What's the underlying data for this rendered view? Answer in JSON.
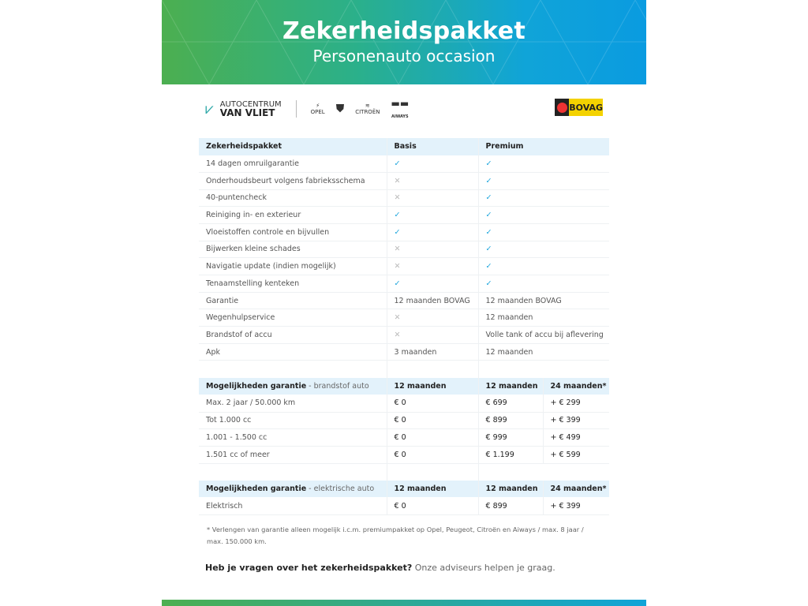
{
  "header": {
    "title": "Zekerheidspakket",
    "subtitle": "Personenauto occasion"
  },
  "logos": {
    "dealer_line1": "AUTOCENTRUM",
    "dealer_line2": "VAN VLIET",
    "brands": [
      "OPEL",
      "PEUGEOT",
      "CITROËN",
      "AIWAYS"
    ],
    "bovag": "BOVAG"
  },
  "colors": {
    "check": "#19a4dc",
    "header_bg": "#e3f2fb",
    "gradient_start": "#4caf50",
    "gradient_end": "#0a9be0"
  },
  "package_table": {
    "headers": [
      "Zekerheidspakket",
      "Basis",
      "Premium"
    ],
    "rows": [
      [
        "14 dagen omruilgarantie",
        "check",
        "check"
      ],
      [
        "Onderhoudsbeurt volgens fabrieksschema",
        "cross",
        "check"
      ],
      [
        "40-puntencheck",
        "cross",
        "check"
      ],
      [
        "Reiniging in- en exterieur",
        "check",
        "check"
      ],
      [
        "Vloeistoffen controle en bijvullen",
        "check",
        "check"
      ],
      [
        "Bijwerken kleine schades",
        "cross",
        "check"
      ],
      [
        "Navigatie update (indien mogelijk)",
        "cross",
        "check"
      ],
      [
        "Tenaamstelling kenteken",
        "check",
        "check"
      ],
      [
        "Garantie",
        "12 maanden BOVAG",
        "12 maanden BOVAG"
      ],
      [
        "Wegenhulpservice",
        "cross",
        "12 maanden"
      ],
      [
        "Brandstof of accu",
        "cross",
        "Volle tank of accu bij aflevering"
      ],
      [
        "Apk",
        "3 maanden",
        "12 maanden"
      ]
    ]
  },
  "fuel_table": {
    "title": "Mogelijkheden garantie",
    "subtitle": " - brandstof auto",
    "headers": [
      "12 maanden",
      "12 maanden",
      "24 maanden*"
    ],
    "rows": [
      [
        "Max. 2 jaar / 50.000 km",
        "€ 0",
        "€ 699",
        "+ € 299"
      ],
      [
        "Tot 1.000 cc",
        "€ 0",
        "€ 899",
        "+ € 399"
      ],
      [
        "1.001 - 1.500 cc",
        "€ 0",
        "€ 999",
        "+ € 499"
      ],
      [
        "1.501 cc of meer",
        "€ 0",
        "€ 1.199",
        "+ € 599"
      ]
    ]
  },
  "electric_table": {
    "title": "Mogelijkheden garantie",
    "subtitle": " - elektrische auto",
    "headers": [
      "12 maanden",
      "12 maanden",
      "24 maanden*"
    ],
    "rows": [
      [
        "Elektrisch",
        "€ 0",
        "€ 899",
        "+ € 399"
      ]
    ]
  },
  "footnote": "* Verlengen van garantie alleen mogelijk i.c.m. premiumpakket op Opel, Peugeot, Citroën en Aiways / max. 8 jaar / max. 150.000 km.",
  "question": {
    "bold": "Heb je vragen over het zekerheidspakket?",
    "text": " Onze adviseurs helpen je graag."
  }
}
